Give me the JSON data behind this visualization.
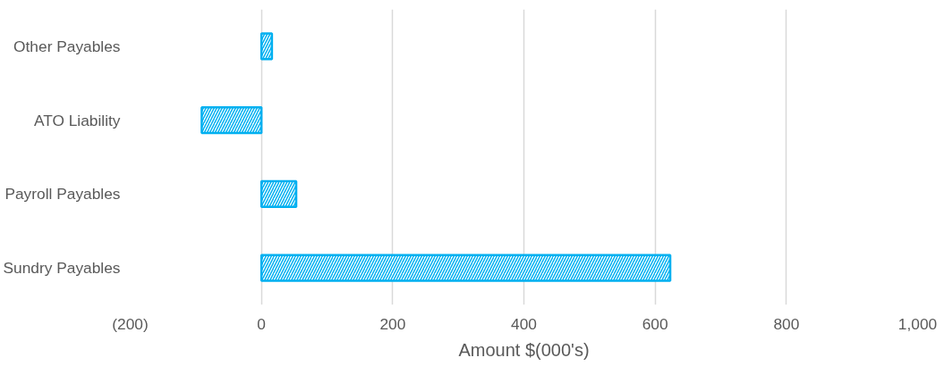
{
  "chart_data": {
    "type": "bar",
    "orientation": "horizontal",
    "xlabel": "Amount $(000's)",
    "categories": [
      "Other Payables",
      "ATO Liability",
      "Payroll Payables",
      "Sundry Payables"
    ],
    "series": [
      {
        "color": "#00b0f0",
        "values": [
          16,
          -91,
          53,
          623
        ]
      }
    ],
    "xlim": [
      -200,
      1000
    ],
    "xticks": [
      {
        "value": -200,
        "label": "(200)"
      },
      0,
      200,
      400,
      600,
      800,
      {
        "value": 1000,
        "label": "1,000"
      }
    ],
    "grid": "x"
  }
}
